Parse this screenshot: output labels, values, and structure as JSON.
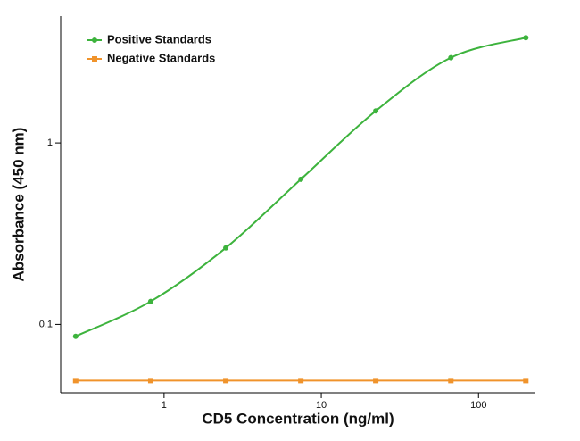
{
  "chart_data": {
    "type": "line",
    "x_label": "CD5 Concentration (ng/ml)",
    "y_label": "Absorbance (450 nm)",
    "x": [
      0.274,
      0.823,
      2.47,
      7.41,
      22.2,
      66.7,
      200
    ],
    "series": [
      {
        "name": "Positive Standards",
        "color": "#3db33d",
        "marker": "circle",
        "values": [
          0.086,
          0.134,
          0.264,
          0.63,
          1.5,
          2.95,
          3.8
        ]
      },
      {
        "name": "Negative Standards",
        "color": "#f0932b",
        "marker": "square",
        "values": [
          0.049,
          0.049,
          0.049,
          0.049,
          0.049,
          0.049,
          0.049
        ]
      }
    ],
    "xscale": "log",
    "yscale": "log",
    "xlim": [
      0.22,
      230
    ],
    "ylim": [
      0.042,
      5
    ],
    "xticks": [
      1,
      10,
      100
    ],
    "yticks": [
      0.1,
      1
    ],
    "legend": "upper left"
  }
}
